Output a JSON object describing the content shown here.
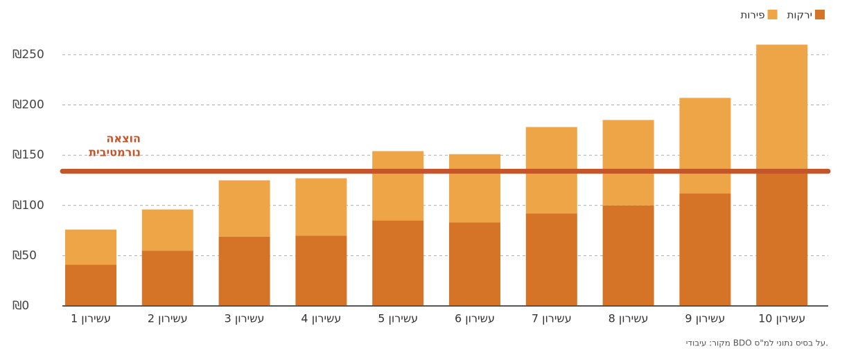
{
  "chart_data": {
    "type": "stacked_bar",
    "categories": [
      "עשירון 1",
      "עשירון 2",
      "עשירון 3",
      "עשירון 4",
      "עשירון 5",
      "עשירון 6",
      "עשירון 7",
      "עשירון 8",
      "עשירון 9",
      "עשירון 10"
    ],
    "series": [
      {
        "name": "ירקות",
        "color": "#d57327",
        "values": [
          41,
          55,
          69,
          70,
          85,
          83,
          92,
          100,
          112,
          135
        ]
      },
      {
        "name": "פירות",
        "color": "#eda548",
        "values": [
          35,
          41,
          56,
          57,
          69,
          68,
          86,
          85,
          95,
          125
        ]
      }
    ],
    "ylim": [
      0,
      250
    ],
    "yticks": [
      {
        "value": 0,
        "label": "₪0"
      },
      {
        "value": 50,
        "label": "₪50"
      },
      {
        "value": 100,
        "label": "₪100"
      },
      {
        "value": 150,
        "label": "₪150"
      },
      {
        "value": 200,
        "label": "₪200"
      },
      {
        "value": 250,
        "label": "₪250"
      }
    ],
    "grid": true,
    "legend": "top-right",
    "reference_line": {
      "value": 134,
      "color": "#c4552b",
      "label": [
        "הוצאה",
        "נורמטיבית"
      ]
    },
    "source": "מקור: עיבודי BDO על בסיס נתוני למ\"ס."
  }
}
